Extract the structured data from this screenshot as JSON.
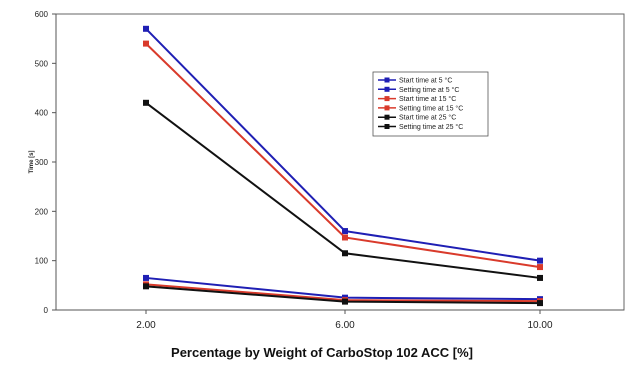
{
  "chart_data": {
    "type": "line",
    "xlabel": "Percentage by Weight of CarboStop 102 ACC [%]",
    "ylabel": "Time [s]",
    "x_categories": [
      "2.00",
      "6.00",
      "10.00"
    ],
    "ylim": [
      0,
      600
    ],
    "y_ticks": [
      "0",
      "100",
      "200",
      "300",
      "400",
      "500",
      "600"
    ],
    "grid": false,
    "legend_position": "right",
    "series": [
      {
        "name": "Start time at 5 °C",
        "color": "#1f1fb4",
        "values": [
          570,
          160,
          100
        ]
      },
      {
        "name": "Setting time at 5 °C",
        "color": "#1f1fb4",
        "values": [
          65,
          25,
          22
        ]
      },
      {
        "name": "Start time at 15 °C",
        "color": "#d93a2b",
        "values": [
          540,
          147,
          87
        ]
      },
      {
        "name": "Setting time at 15 °C",
        "color": "#d93a2b",
        "values": [
          52,
          20,
          18
        ]
      },
      {
        "name": "Start time at 25 °C",
        "color": "#111111",
        "values": [
          420,
          115,
          65
        ]
      },
      {
        "name": "Setting time at 25 °C",
        "color": "#111111",
        "values": [
          48,
          17,
          14
        ]
      }
    ]
  }
}
